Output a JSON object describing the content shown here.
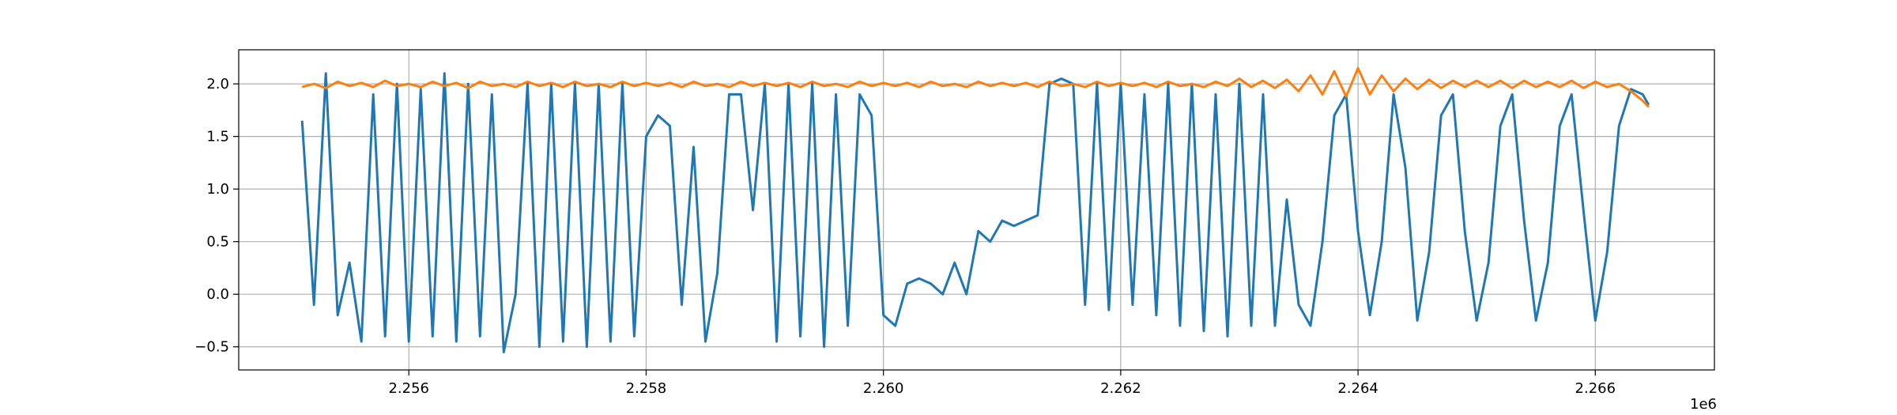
{
  "chart_data": {
    "type": "line",
    "x": [
      2255100,
      2255200,
      2255300,
      2255400,
      2255500,
      2255600,
      2255700,
      2255800,
      2255900,
      2256000,
      2256100,
      2256200,
      2256300,
      2256400,
      2256500,
      2256600,
      2256700,
      2256800,
      2256900,
      2257000,
      2257100,
      2257200,
      2257300,
      2257400,
      2257500,
      2257600,
      2257700,
      2257800,
      2257900,
      2258000,
      2258100,
      2258200,
      2258300,
      2258400,
      2258500,
      2258600,
      2258700,
      2258800,
      2258900,
      2259000,
      2259100,
      2259200,
      2259300,
      2259400,
      2259500,
      2259600,
      2259700,
      2259800,
      2259900,
      2260000,
      2260100,
      2260200,
      2260300,
      2260400,
      2260500,
      2260600,
      2260700,
      2260800,
      2260900,
      2261000,
      2261100,
      2261200,
      2261300,
      2261400,
      2261500,
      2261600,
      2261700,
      2261800,
      2261900,
      2262000,
      2262100,
      2262200,
      2262300,
      2262400,
      2262500,
      2262600,
      2262700,
      2262800,
      2262900,
      2263000,
      2263100,
      2263200,
      2263300,
      2263400,
      2263500,
      2263600,
      2263700,
      2263800,
      2263900,
      2264000,
      2264100,
      2264200,
      2264300,
      2264400,
      2264500,
      2264600,
      2264700,
      2264800,
      2264900,
      2265000,
      2265100,
      2265200,
      2265300,
      2265400,
      2265500,
      2265600,
      2265700,
      2265800,
      2265900,
      2266000,
      2266100,
      2266200,
      2266300,
      2266400,
      2266450
    ],
    "series": [
      {
        "color": "#1f77b4",
        "values": [
          1.65,
          -0.1,
          2.1,
          -0.2,
          0.3,
          -0.45,
          1.9,
          -0.4,
          2.0,
          -0.45,
          1.95,
          -0.4,
          2.1,
          -0.45,
          2.0,
          -0.4,
          1.9,
          -0.55,
          0.0,
          2.0,
          -0.5,
          2.0,
          -0.45,
          2.0,
          -0.5,
          2.0,
          -0.45,
          2.0,
          -0.4,
          1.5,
          1.7,
          1.6,
          -0.1,
          1.4,
          -0.45,
          0.2,
          1.9,
          1.9,
          0.8,
          2.0,
          -0.45,
          2.0,
          -0.4,
          2.0,
          -0.5,
          1.9,
          -0.3,
          1.9,
          1.7,
          -0.2,
          -0.3,
          0.1,
          0.15,
          0.1,
          0.0,
          0.3,
          0.0,
          0.6,
          0.5,
          0.7,
          0.65,
          0.7,
          0.75,
          2.0,
          2.05,
          2.0,
          -0.1,
          2.0,
          -0.15,
          2.0,
          -0.1,
          1.9,
          -0.2,
          2.0,
          -0.3,
          2.0,
          -0.35,
          1.9,
          -0.4,
          2.0,
          -0.3,
          1.9,
          -0.3,
          0.9,
          -0.1,
          -0.3,
          0.5,
          1.7,
          1.9,
          0.6,
          -0.2,
          0.5,
          1.9,
          1.2,
          -0.25,
          0.4,
          1.7,
          1.9,
          0.6,
          -0.25,
          0.3,
          1.6,
          1.9,
          0.7,
          -0.25,
          0.3,
          1.6,
          1.9,
          0.8,
          -0.25,
          0.4,
          1.6,
          1.95,
          1.9,
          1.8
        ]
      },
      {
        "color": "#ff7f0e",
        "values": [
          1.97,
          2.0,
          1.96,
          2.02,
          1.98,
          2.01,
          1.97,
          2.03,
          1.98,
          2.0,
          1.97,
          2.02,
          1.98,
          2.01,
          1.96,
          2.02,
          1.98,
          2.0,
          1.97,
          2.02,
          1.98,
          2.01,
          1.97,
          2.02,
          1.98,
          2.0,
          1.97,
          2.02,
          1.98,
          2.01,
          1.98,
          2.01,
          1.97,
          2.02,
          1.98,
          2.0,
          1.97,
          2.02,
          1.98,
          2.01,
          1.98,
          2.01,
          1.97,
          2.02,
          1.98,
          2.0,
          1.97,
          2.02,
          1.98,
          2.01,
          1.98,
          2.01,
          1.97,
          2.02,
          1.98,
          2.0,
          1.97,
          2.02,
          1.98,
          2.01,
          1.98,
          2.01,
          1.97,
          2.02,
          1.98,
          2.0,
          1.97,
          2.02,
          1.98,
          2.01,
          1.98,
          2.01,
          1.97,
          2.02,
          1.98,
          2.0,
          1.97,
          2.02,
          1.98,
          2.05,
          1.97,
          2.03,
          1.96,
          2.04,
          1.93,
          2.08,
          1.9,
          2.12,
          1.88,
          2.15,
          1.9,
          2.08,
          1.93,
          2.05,
          1.95,
          2.04,
          1.96,
          2.03,
          1.97,
          2.03,
          1.97,
          2.03,
          1.96,
          2.03,
          1.97,
          2.02,
          1.97,
          2.03,
          1.96,
          2.02,
          1.97,
          2.0,
          1.93,
          1.84,
          1.78
        ]
      }
    ],
    "xlim": [
      2254566,
      2267004
    ],
    "ylim": [
      -0.72,
      2.324
    ],
    "xticks": [
      {
        "value": 2256000,
        "label": "2.256"
      },
      {
        "value": 2258000,
        "label": "2.258"
      },
      {
        "value": 2260000,
        "label": "2.260"
      },
      {
        "value": 2262000,
        "label": "2.262"
      },
      {
        "value": 2264000,
        "label": "2.264"
      },
      {
        "value": 2266000,
        "label": "2.266"
      }
    ],
    "yticks": [
      {
        "value": -0.5,
        "label": "−0.5"
      },
      {
        "value": 0,
        "label": "0.0"
      },
      {
        "value": 0.5,
        "label": "0.5"
      },
      {
        "value": 1,
        "label": "1.0"
      },
      {
        "value": 1.5,
        "label": "1.5"
      },
      {
        "value": 2,
        "label": "2.0"
      }
    ],
    "x_offset_label": "1e6",
    "grid": true
  }
}
